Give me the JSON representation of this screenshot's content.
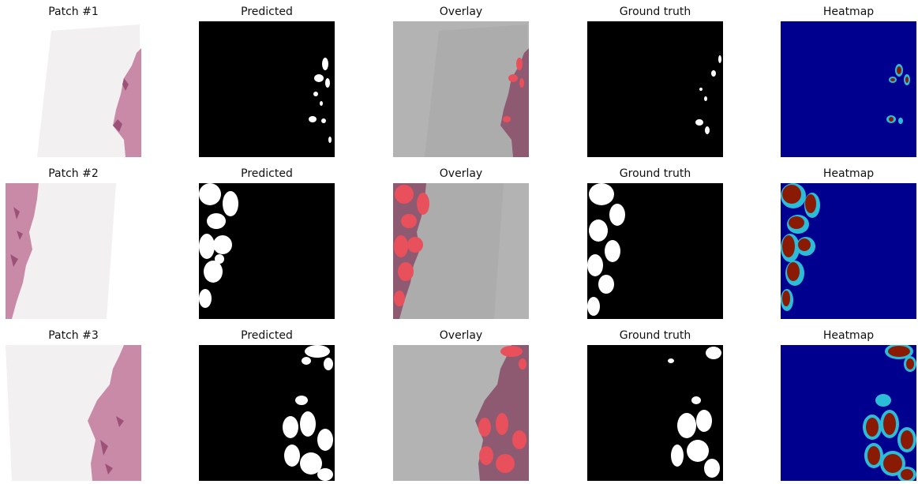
{
  "rows": [
    {
      "titles": [
        "Patch #1",
        "Predicted",
        "Overlay",
        "Ground truth",
        "Heatmap"
      ]
    },
    {
      "titles": [
        "Patch #2",
        "Predicted",
        "Overlay",
        "Ground truth",
        "Heatmap"
      ]
    },
    {
      "titles": [
        "Patch #3",
        "Predicted",
        "Overlay",
        "Ground truth",
        "Heatmap"
      ]
    }
  ],
  "colors": {
    "tissue": "#c98aa8",
    "tissue_dark": "#9c5278",
    "slide_background": "#f2f0f1",
    "mask_foreground": "#ffffff",
    "mask_background": "#000000",
    "overlay_gray": "#b3b3b3",
    "overlay_highlight": "#e8505b",
    "heatmap_low": "#00008f",
    "heatmap_mid": "#2bbcd8",
    "heatmap_high": "#8b1a05"
  }
}
